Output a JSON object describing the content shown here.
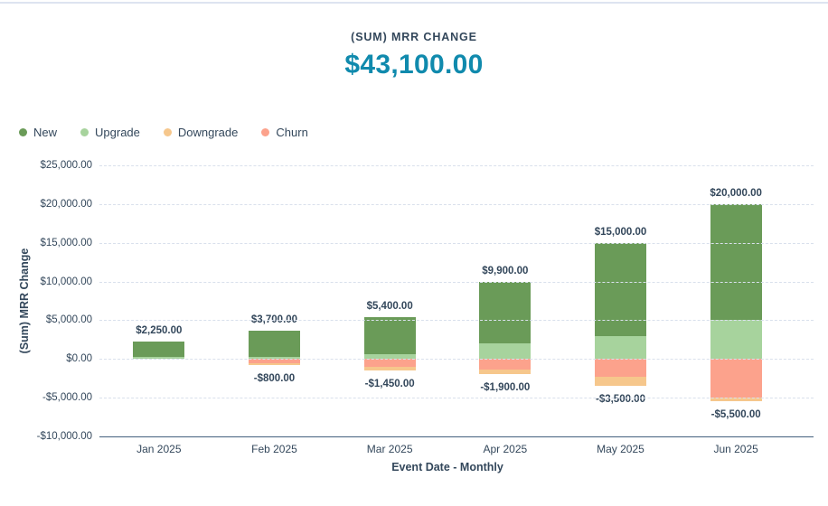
{
  "header": {
    "title": "(SUM) MRR CHANGE",
    "value": "$43,100.00"
  },
  "colors": {
    "accent_value": "#108aad",
    "text": "#33475b",
    "gridline": "#d9e0ec",
    "axis_line": "#44607e",
    "new": "#6a9b58",
    "upgrade": "#a7d39d",
    "downgrade": "#f6c78c",
    "churn": "#fca28c"
  },
  "legend": {
    "items": [
      {
        "label": "New",
        "color": "#6a9b58"
      },
      {
        "label": "Upgrade",
        "color": "#a7d39d"
      },
      {
        "label": "Downgrade",
        "color": "#f6c78c"
      },
      {
        "label": "Churn",
        "color": "#fca28c"
      }
    ]
  },
  "chart_data": {
    "type": "bar",
    "stacked": true,
    "title": "(SUM) MRR CHANGE",
    "total_value": 43100,
    "categories": [
      "Jan 2025",
      "Feb 2025",
      "Mar 2025",
      "Apr 2025",
      "May 2025",
      "Jun 2025"
    ],
    "series": [
      {
        "name": "New",
        "color": "#6a9b58",
        "values": [
          2000,
          3400,
          4800,
          7900,
          12000,
          15000
        ]
      },
      {
        "name": "Upgrade",
        "color": "#a7d39d",
        "values": [
          250,
          300,
          600,
          2000,
          3000,
          5000
        ]
      },
      {
        "name": "Downgrade",
        "color": "#f6c78c",
        "values": [
          0,
          -300,
          -450,
          -500,
          -1250,
          -500
        ]
      },
      {
        "name": "Churn",
        "color": "#fca28c",
        "values": [
          0,
          -500,
          -1000,
          -1400,
          -2250,
          -5000
        ]
      }
    ],
    "positive_totals": [
      2250,
      3700,
      5400,
      9900,
      15000,
      20000
    ],
    "negative_totals": [
      0,
      -800,
      -1450,
      -1900,
      -3500,
      -5500
    ],
    "positive_labels": [
      "$2,250.00",
      "$3,700.00",
      "$5,400.00",
      "$9,900.00",
      "$15,000.00",
      "$20,000.00"
    ],
    "negative_labels": [
      "",
      "-$800.00",
      "-$1,450.00",
      "-$1,900.00",
      "-$3,500.00",
      "-$5,500.00"
    ],
    "xlabel": "Event Date - Monthly",
    "ylabel": "(Sum) MRR Change",
    "ylim": [
      -10000,
      25000
    ],
    "ytick_step": 5000,
    "ytick_labels": [
      "$25,000.00",
      "$20,000.00",
      "$15,000.00",
      "$10,000.00",
      "$5,000.00",
      "$0.00",
      "-$5,000.00",
      "-$10,000.00"
    ],
    "grid": "horizontal-dashed",
    "legend_position": "top-left"
  }
}
